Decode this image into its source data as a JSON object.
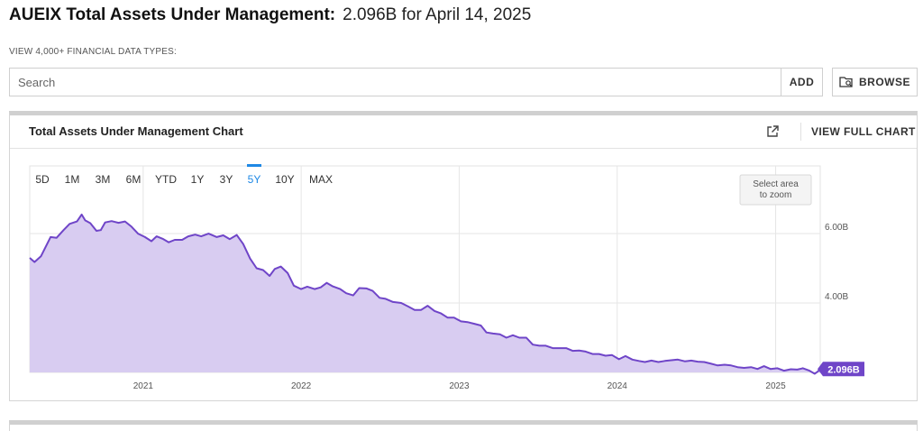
{
  "header": {
    "title": "AUEIX Total Assets Under Management:",
    "value_text": "2.096B for April 14, 2025"
  },
  "search": {
    "section_label": "VIEW 4,000+ FINANCIAL DATA TYPES:",
    "placeholder": "Search",
    "add_label": "ADD",
    "browse_label": "BROWSE"
  },
  "panel": {
    "title": "Total Assets Under Management Chart",
    "view_full_label": "VIEW FULL CHART"
  },
  "chart_controls": {
    "ranges": [
      "5D",
      "1M",
      "3M",
      "6M",
      "YTD",
      "1Y",
      "3Y",
      "5Y",
      "10Y",
      "MAX"
    ],
    "active_range": "5Y",
    "zoom_hint": [
      "Select area",
      "to zoom"
    ]
  },
  "colors": {
    "line": "#6f45c8",
    "fill": "#d8ccf1",
    "active_range": "#1e88e5",
    "badge": "#6f45c8"
  },
  "chart_data": {
    "type": "area",
    "title": "Total Assets Under Management Chart",
    "xlabel": "",
    "ylabel": "",
    "x_axis_type": "date",
    "x_ticks": [
      "2021",
      "2022",
      "2023",
      "2024",
      "2025"
    ],
    "y_ticks": [
      {
        "value": 4.0,
        "label": "4.00B"
      },
      {
        "value": 6.0,
        "label": "6.00B"
      }
    ],
    "ylim": [
      2.0,
      7.95
    ],
    "xlim": [
      "2020-04-14",
      "2025-04-14"
    ],
    "grid": true,
    "last_value_label": "2.096B",
    "series": [
      {
        "units": "B USD",
        "x": [
          "2020-04-14",
          "2020-04-25",
          "2020-05-10",
          "2020-06-01",
          "2020-06-15",
          "2020-07-01",
          "2020-07-15",
          "2020-08-01",
          "2020-08-12",
          "2020-08-20",
          "2020-09-01",
          "2020-09-15",
          "2020-09-25",
          "2020-10-05",
          "2020-10-20",
          "2020-11-05",
          "2020-11-20",
          "2020-12-05",
          "2020-12-20",
          "2021-01-05",
          "2021-01-20",
          "2021-02-01",
          "2021-02-15",
          "2021-03-01",
          "2021-03-15",
          "2021-04-01",
          "2021-04-15",
          "2021-05-01",
          "2021-05-15",
          "2021-06-01",
          "2021-06-20",
          "2021-07-05",
          "2021-07-20",
          "2021-08-05",
          "2021-08-20",
          "2021-09-05",
          "2021-09-20",
          "2021-10-05",
          "2021-10-20",
          "2021-11-01",
          "2021-11-15",
          "2021-12-01",
          "2021-12-15",
          "2022-01-01",
          "2022-01-15",
          "2022-02-01",
          "2022-02-15",
          "2022-03-01",
          "2022-03-15",
          "2022-04-01",
          "2022-04-15",
          "2022-05-01",
          "2022-05-15",
          "2022-06-01",
          "2022-06-15",
          "2022-07-01",
          "2022-07-15",
          "2022-08-01",
          "2022-08-20",
          "2022-09-05",
          "2022-09-20",
          "2022-10-05",
          "2022-10-20",
          "2022-11-05",
          "2022-11-20",
          "2022-12-05",
          "2022-12-20",
          "2023-01-05",
          "2023-01-20",
          "2023-02-05",
          "2023-02-20",
          "2023-03-05",
          "2023-03-20",
          "2023-04-05",
          "2023-04-20",
          "2023-05-05",
          "2023-05-20",
          "2023-06-05",
          "2023-06-20",
          "2023-07-05",
          "2023-07-20",
          "2023-08-05",
          "2023-08-20",
          "2023-09-05",
          "2023-09-20",
          "2023-10-05",
          "2023-10-20",
          "2023-11-05",
          "2023-11-20",
          "2023-12-05",
          "2023-12-20",
          "2024-01-05",
          "2024-01-20",
          "2024-02-05",
          "2024-02-20",
          "2024-03-05",
          "2024-03-20",
          "2024-04-05",
          "2024-04-20",
          "2024-05-05",
          "2024-05-20",
          "2024-06-05",
          "2024-06-20",
          "2024-07-05",
          "2024-07-20",
          "2024-08-05",
          "2024-08-20",
          "2024-09-05",
          "2024-09-20",
          "2024-10-05",
          "2024-10-20",
          "2024-11-05",
          "2024-11-20",
          "2024-12-05",
          "2024-12-20",
          "2025-01-05",
          "2025-01-20",
          "2025-02-05",
          "2025-02-20",
          "2025-03-05",
          "2025-03-20",
          "2025-04-01",
          "2025-04-07",
          "2025-04-14"
        ],
        "y": [
          5.3,
          5.18,
          5.35,
          5.9,
          5.88,
          6.1,
          6.28,
          6.35,
          6.55,
          6.38,
          6.3,
          6.08,
          6.1,
          6.32,
          6.36,
          6.31,
          6.35,
          6.2,
          6.0,
          5.9,
          5.78,
          5.92,
          5.85,
          5.75,
          5.82,
          5.82,
          5.92,
          5.97,
          5.92,
          6.0,
          5.9,
          5.95,
          5.84,
          5.96,
          5.7,
          5.28,
          5.0,
          4.95,
          4.78,
          4.98,
          5.05,
          4.86,
          4.5,
          4.4,
          4.47,
          4.4,
          4.45,
          4.58,
          4.48,
          4.4,
          4.28,
          4.22,
          4.43,
          4.42,
          4.35,
          4.15,
          4.12,
          4.03,
          4.0,
          3.9,
          3.8,
          3.8,
          3.92,
          3.77,
          3.7,
          3.58,
          3.58,
          3.47,
          3.45,
          3.4,
          3.35,
          3.15,
          3.12,
          3.1,
          3.0,
          3.07,
          3.0,
          3.0,
          2.8,
          2.77,
          2.77,
          2.7,
          2.7,
          2.7,
          2.62,
          2.63,
          2.6,
          2.53,
          2.53,
          2.48,
          2.5,
          2.38,
          2.47,
          2.37,
          2.33,
          2.3,
          2.34,
          2.3,
          2.33,
          2.35,
          2.37,
          2.32,
          2.34,
          2.31,
          2.3,
          2.25,
          2.2,
          2.22,
          2.2,
          2.15,
          2.13,
          2.15,
          2.1,
          2.18,
          2.1,
          2.12,
          2.05,
          2.09,
          2.08,
          2.12,
          2.05,
          1.96,
          2.01,
          2.096
        ]
      }
    ]
  }
}
